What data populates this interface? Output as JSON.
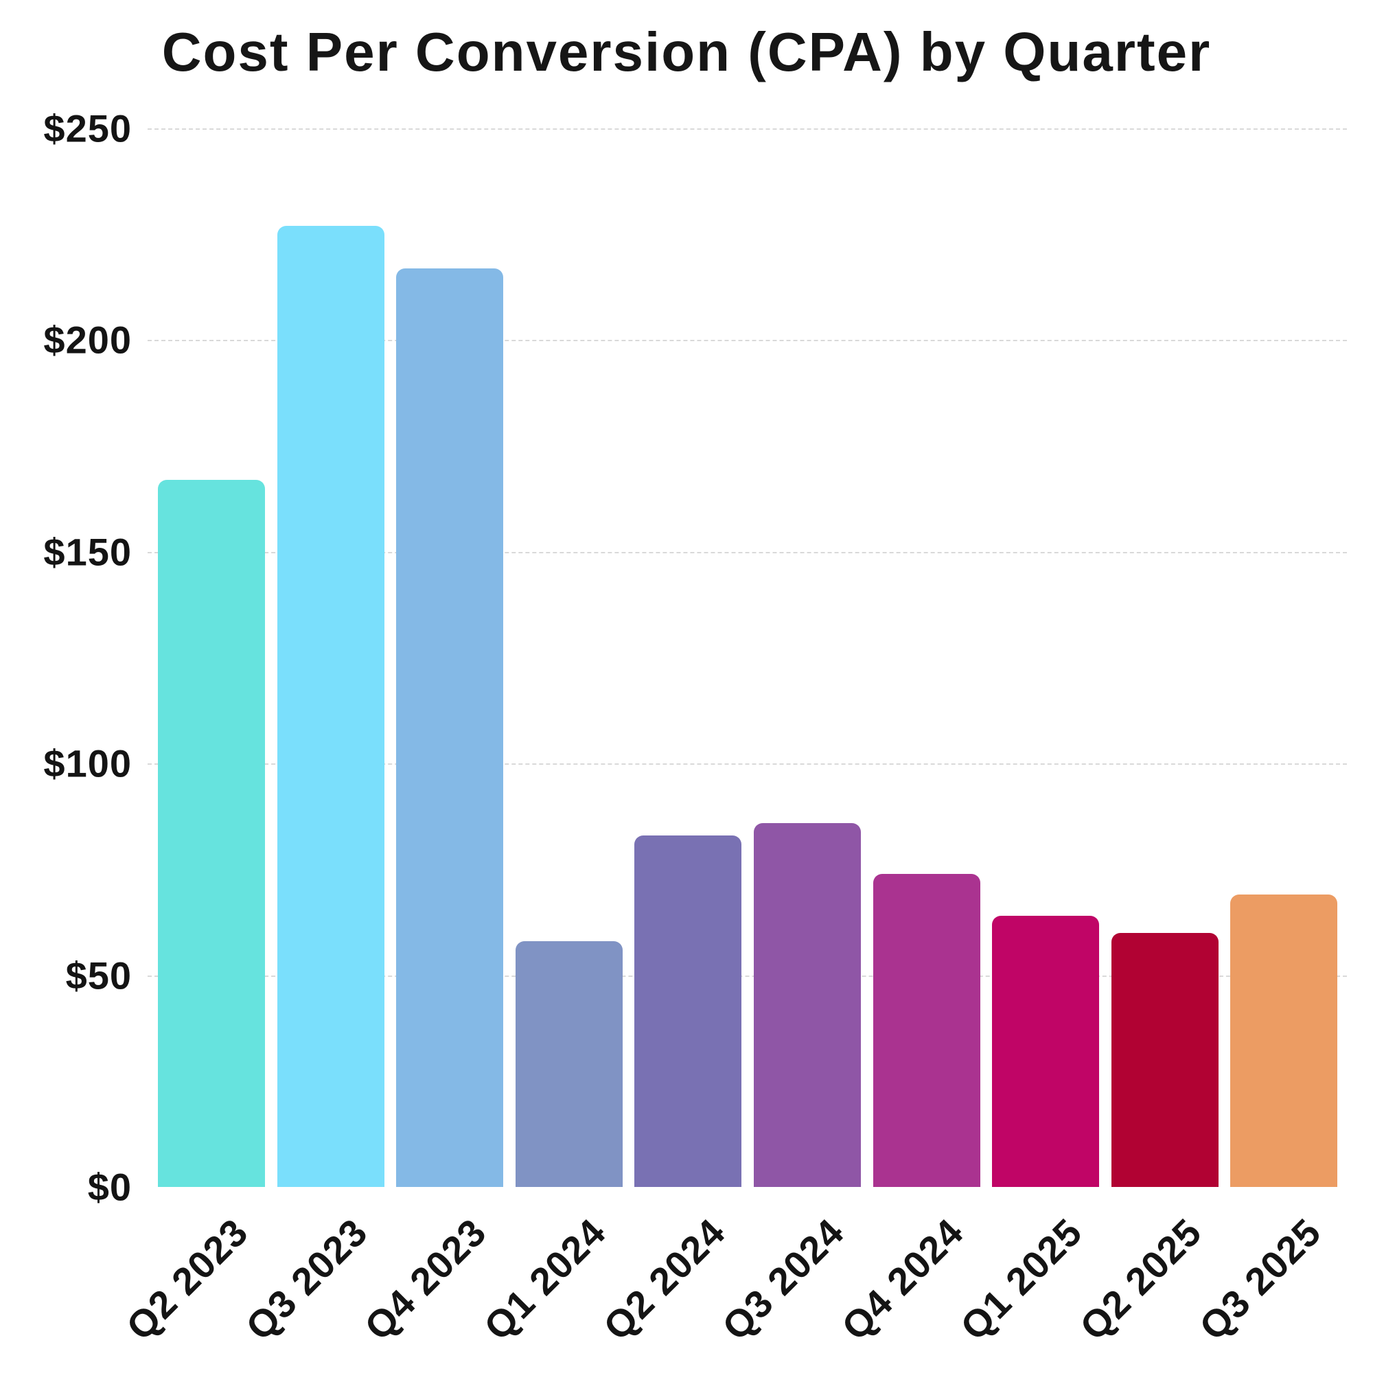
{
  "title": "Cost Per Conversion (CPA) by Quarter",
  "chart_data": {
    "type": "bar",
    "title": "Cost Per Conversion (CPA) by Quarter",
    "categories": [
      "Q2 2023",
      "Q3 2023",
      "Q4 2023",
      "Q1 2024",
      "Q2 2024",
      "Q3 2024",
      "Q4 2024",
      "Q1 2025",
      "Q2 2025",
      "Q3 2025"
    ],
    "values": [
      167,
      227,
      217,
      58,
      83,
      86,
      74,
      64,
      60,
      69
    ],
    "value_prefix": "$",
    "xlabel": "",
    "ylabel": "",
    "ylim": [
      0,
      250
    ],
    "y_tick_step": 50,
    "y_ticks": [
      {
        "value": 0,
        "label": "$0"
      },
      {
        "value": 50,
        "label": "$50"
      },
      {
        "value": 100,
        "label": "$100"
      },
      {
        "value": 150,
        "label": "$150"
      },
      {
        "value": 200,
        "label": "$200"
      },
      {
        "value": 250,
        "label": "$250"
      }
    ],
    "grid": "horizontal-dashed",
    "legend": "none",
    "bar_colors": [
      "#66E3DE",
      "#7ADFFC",
      "#84B9E6",
      "#8093C4",
      "#7971B3",
      "#8F56A6",
      "#AA3390",
      "#C00566",
      "#B10233",
      "#EC9C63"
    ]
  },
  "colors": {
    "background": "#ffffff",
    "grid": "#d9d9d9",
    "text": "#141414"
  }
}
